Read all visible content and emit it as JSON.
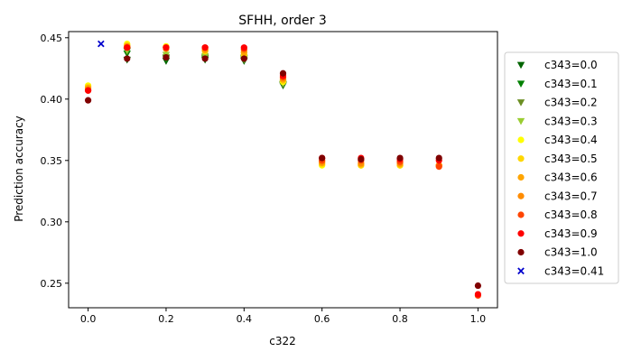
{
  "chart_data": {
    "type": "scatter",
    "title": "SFHH, order 3",
    "xlabel": "c322",
    "ylabel": "Prediction accuracy",
    "xlim": [
      -0.05,
      1.05
    ],
    "ylim": [
      0.23,
      0.455
    ],
    "xticks": [
      "0.0",
      "0.2",
      "0.4",
      "0.6",
      "0.8",
      "1.0"
    ],
    "yticks": [
      "0.25",
      "0.30",
      "0.35",
      "0.40",
      "0.45"
    ],
    "grid": false,
    "legend_placement": "right, outside plot",
    "series": [
      {
        "name": "c343=0.0",
        "marker": "triangle-down",
        "color": "#006400",
        "points": [
          [
            0.1,
            0.432
          ],
          [
            0.2,
            0.431
          ],
          [
            0.3,
            0.432
          ],
          [
            0.4,
            0.431
          ],
          [
            0.5,
            0.411
          ]
        ]
      },
      {
        "name": "c343=0.1",
        "marker": "triangle-down",
        "color": "#008000",
        "points": [
          [
            0.1,
            0.437
          ],
          [
            0.2,
            0.433
          ],
          [
            0.3,
            0.433
          ],
          [
            0.4,
            0.433
          ],
          [
            0.5,
            0.412
          ]
        ]
      },
      {
        "name": "c343=0.2",
        "marker": "triangle-down",
        "color": "#6b8e23",
        "points": [
          [
            0.1,
            0.439
          ],
          [
            0.2,
            0.434
          ],
          [
            0.3,
            0.434
          ],
          [
            0.4,
            0.432
          ],
          [
            0.5,
            0.412
          ]
        ]
      },
      {
        "name": "c343=0.3",
        "marker": "triangle-down",
        "color": "#9acd32",
        "points": [
          [
            0.1,
            0.44
          ],
          [
            0.2,
            0.436
          ],
          [
            0.3,
            0.435
          ],
          [
            0.4,
            0.434
          ],
          [
            0.5,
            0.413
          ]
        ]
      },
      {
        "name": "c343=0.4",
        "marker": "circle",
        "color": "#ffff00",
        "points": [
          [
            0.0,
            0.411
          ],
          [
            0.1,
            0.445
          ],
          [
            0.2,
            0.443
          ],
          [
            0.3,
            0.44
          ],
          [
            0.4,
            0.438
          ],
          [
            0.5,
            0.414
          ],
          [
            0.6,
            0.346
          ],
          [
            0.7,
            0.346
          ],
          [
            0.8,
            0.346
          ],
          [
            0.9,
            0.346
          ]
        ]
      },
      {
        "name": "c343=0.5",
        "marker": "circle",
        "color": "#ffd700",
        "points": [
          [
            0.0,
            0.41
          ],
          [
            0.1,
            0.444
          ],
          [
            0.2,
            0.442
          ],
          [
            0.3,
            0.439
          ],
          [
            0.4,
            0.436
          ],
          [
            0.5,
            0.415
          ],
          [
            0.6,
            0.347
          ],
          [
            0.7,
            0.346
          ],
          [
            0.8,
            0.346
          ],
          [
            0.9,
            0.346
          ]
        ]
      },
      {
        "name": "c343=0.6",
        "marker": "circle",
        "color": "#ffa500",
        "points": [
          [
            0.0,
            0.409
          ],
          [
            0.1,
            0.443
          ],
          [
            0.2,
            0.442
          ],
          [
            0.3,
            0.44
          ],
          [
            0.4,
            0.438
          ],
          [
            0.5,
            0.416
          ],
          [
            0.6,
            0.348
          ],
          [
            0.7,
            0.347
          ],
          [
            0.8,
            0.347
          ],
          [
            0.9,
            0.346
          ]
        ]
      },
      {
        "name": "c343=0.7",
        "marker": "circle",
        "color": "#ff8c00",
        "points": [
          [
            0.0,
            0.408
          ],
          [
            0.1,
            0.443
          ],
          [
            0.2,
            0.441
          ],
          [
            0.3,
            0.441
          ],
          [
            0.4,
            0.44
          ],
          [
            0.5,
            0.417
          ],
          [
            0.6,
            0.349
          ],
          [
            0.7,
            0.348
          ],
          [
            0.8,
            0.348
          ],
          [
            0.9,
            0.346
          ]
        ]
      },
      {
        "name": "c343=0.8",
        "marker": "circle",
        "color": "#ff4500",
        "points": [
          [
            0.0,
            0.407
          ],
          [
            0.1,
            0.442
          ],
          [
            0.2,
            0.442
          ],
          [
            0.3,
            0.442
          ],
          [
            0.4,
            0.441
          ],
          [
            0.5,
            0.418
          ],
          [
            0.6,
            0.35
          ],
          [
            0.7,
            0.35
          ],
          [
            0.8,
            0.349
          ],
          [
            0.9,
            0.345
          ],
          [
            1.0,
            0.24
          ]
        ]
      },
      {
        "name": "c343=0.9",
        "marker": "circle",
        "color": "#ff0000",
        "points": [
          [
            0.0,
            0.407
          ],
          [
            0.1,
            0.442
          ],
          [
            0.2,
            0.442
          ],
          [
            0.3,
            0.442
          ],
          [
            0.4,
            0.442
          ],
          [
            0.5,
            0.419
          ],
          [
            0.6,
            0.352
          ],
          [
            0.7,
            0.352
          ],
          [
            0.8,
            0.351
          ],
          [
            0.9,
            0.35
          ],
          [
            1.0,
            0.241
          ]
        ]
      },
      {
        "name": "c343=1.0",
        "marker": "circle",
        "color": "#800000",
        "points": [
          [
            0.0,
            0.399
          ],
          [
            0.1,
            0.433
          ],
          [
            0.2,
            0.434
          ],
          [
            0.3,
            0.433
          ],
          [
            0.4,
            0.433
          ],
          [
            0.5,
            0.421
          ],
          [
            0.6,
            0.352
          ],
          [
            0.7,
            0.351
          ],
          [
            0.8,
            0.352
          ],
          [
            0.9,
            0.352
          ],
          [
            1.0,
            0.248
          ]
        ]
      },
      {
        "name": "c343=0.41",
        "marker": "x",
        "color": "#0000cd",
        "points": [
          [
            0.033,
            0.445
          ]
        ]
      }
    ]
  }
}
